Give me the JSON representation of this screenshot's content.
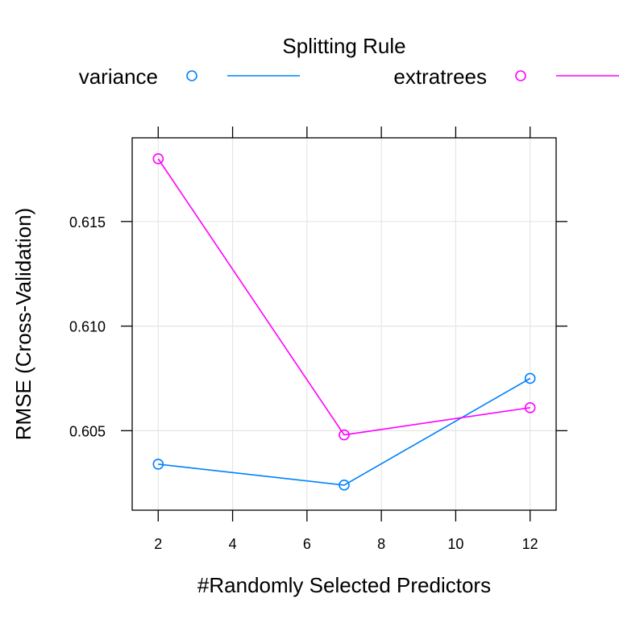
{
  "chart_data": {
    "type": "line",
    "title": "",
    "xlabel": "#Randomly Selected Predictors",
    "ylabel": "RMSE (Cross-Validation)",
    "xlim": [
      1.3,
      12.7
    ],
    "ylim": [
      0.6012,
      0.619
    ],
    "x_ticks": [
      2,
      4,
      6,
      8,
      10,
      12
    ],
    "x_tick_labels": [
      "2",
      "4",
      "6",
      "8",
      "10",
      "12"
    ],
    "y_ticks": [
      0.605,
      0.61,
      0.615
    ],
    "y_tick_labels": [
      "0.605",
      "0.610",
      "0.615"
    ],
    "grid": true,
    "legend": {
      "title": "Splitting Rule",
      "placement": "top"
    },
    "x": [
      2,
      7,
      12
    ],
    "series": [
      {
        "name": "variance",
        "color": "#0080ff",
        "marker": "open-circle",
        "values": [
          0.6034,
          0.6024,
          0.6075
        ]
      },
      {
        "name": "extratrees",
        "color": "#ff00ff",
        "marker": "open-circle",
        "values": [
          0.618,
          0.6048,
          0.6061
        ]
      }
    ]
  }
}
